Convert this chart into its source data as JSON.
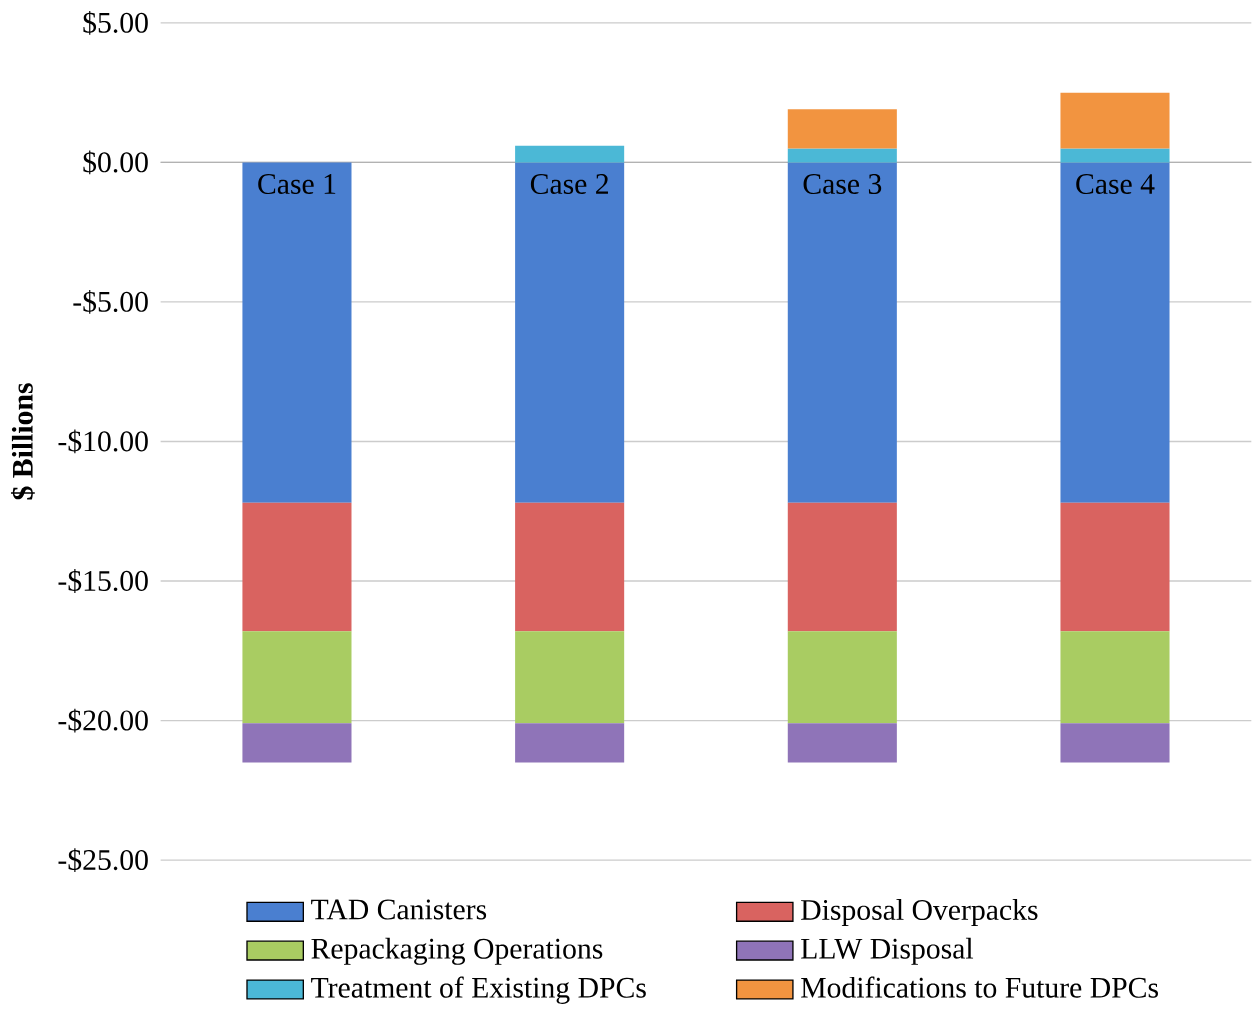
{
  "chart_data": {
    "type": "bar",
    "stacked": true,
    "ylabel": "$ Billions",
    "categories": [
      "Case 1",
      "Case 2",
      "Case 3",
      "Case 4"
    ],
    "series": [
      {
        "name": "TAD Canisters",
        "color": "#4a7fd0",
        "values": [
          -12.2,
          -12.2,
          -12.2,
          -12.2
        ]
      },
      {
        "name": "Disposal Overpacks",
        "color": "#d96360",
        "values": [
          -4.6,
          -4.6,
          -4.6,
          -4.6
        ]
      },
      {
        "name": "Repackaging Operations",
        "color": "#a9cc62",
        "values": [
          -3.3,
          -3.3,
          -3.3,
          -3.3
        ]
      },
      {
        "name": "LLW Disposal",
        "color": "#8f74b8",
        "values": [
          -1.4,
          -1.4,
          -1.4,
          -1.4
        ]
      },
      {
        "name": "Treatment of Existing DPCs",
        "color": "#4bb8d6",
        "values": [
          null,
          0.6,
          0.5,
          0.5
        ]
      },
      {
        "name": "Modifications to Future DPCs",
        "color": "#f29440",
        "values": [
          null,
          null,
          1.4,
          2.0
        ]
      }
    ],
    "ylim": [
      -25,
      5
    ],
    "yticks": [
      {
        "value": -25,
        "label": "-$25.00"
      },
      {
        "value": -20,
        "label": "-$20.00"
      },
      {
        "value": -15,
        "label": "-$15.00"
      },
      {
        "value": -10,
        "label": "-$10.00"
      },
      {
        "value": -5,
        "label": "-$5.00"
      },
      {
        "value": 0,
        "label": "$0.00"
      },
      {
        "value": 5,
        "label": "$5.00"
      }
    ],
    "grid": "y",
    "legend": "bottom"
  }
}
